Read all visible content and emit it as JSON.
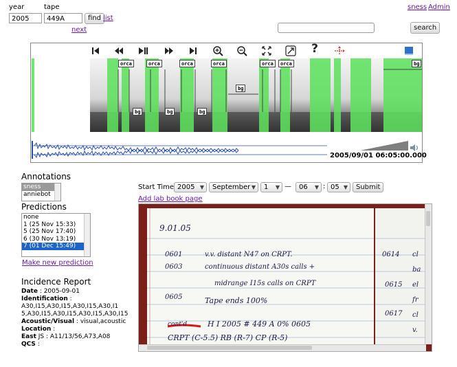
{
  "top": {
    "year_label": "year",
    "tape_label": "tape",
    "year_value": "2005",
    "tape_value": "449A",
    "find_label": "find",
    "list_label": "list",
    "next_label": "next",
    "search_placeholder": "",
    "search_label": "search",
    "user_link": "sness",
    "admin_link": "Admin"
  },
  "toolbar": {
    "icons": [
      "skip-start-icon",
      "rewind-icon",
      "play-pause-icon",
      "fast-forward-icon",
      "skip-end-icon",
      "zoom-in-icon",
      "zoom-out-icon",
      "fit-expand-icon",
      "resize-icon",
      "help-icon",
      "crosshair-icon",
      "book-icon"
    ],
    "help_glyph": "?"
  },
  "spectrogram": {
    "tags": [
      {
        "text": "orca"
      },
      {
        "text": "orca"
      },
      {
        "text": "orca"
      },
      {
        "text": "orca"
      },
      {
        "text": "orca"
      },
      {
        "text": "orca"
      },
      {
        "text": "bg"
      },
      {
        "text": "bg"
      },
      {
        "text": "bg"
      },
      {
        "text": "bg"
      },
      {
        "text": "bg"
      }
    ]
  },
  "waveform": {
    "timestamp": "2005/09/01 06:05:00.000"
  },
  "annotations": {
    "title": "Annotations",
    "items": [
      "sness",
      "anniebot"
    ]
  },
  "predictions": {
    "title": "Predictions",
    "items": [
      "none",
      "1 (25 Nov 15:33)",
      "5 (25 Nov 17:40)",
      "6 (30 Nov 13:19)",
      "7 (01 Dec 15:49)"
    ],
    "selected_index": 4,
    "make_new_label": "Make new prediction"
  },
  "start_time": {
    "label": "Start Time",
    "year": "2005",
    "month": "September",
    "day": "1",
    "dash": "—",
    "hour": "06",
    "colon": ":",
    "minute": "05",
    "submit_label": "Submit",
    "lab_book_link": "Add lab book page"
  },
  "incidence": {
    "title": "Incidence Report",
    "date_key": "Date",
    "date_value": " : 2005-09-01",
    "ident_key": "Identification",
    "ident_value": " :",
    "ident_line1": "A30,I15,A30,I15,A30,I15,A30,I1",
    "ident_line2": "5,A30,I15,A30,I15,A30,I15,A30,I15",
    "av_key": "Acoustic/Visual",
    "av_value": " : visual,acoustic",
    "location_key": "Location",
    "location_value": " :",
    "east_key": "East",
    "east_value": " JS : A11/13/56,A73,A08",
    "qcs_key": "QCS",
    "qcs_value": " :"
  },
  "notebook": {
    "lines": [
      "9.01.05",
      "0601",
      "v.v. distant N47 on CRPT.",
      "0603",
      "continuous distant A30s calls +",
      "midrange I15s calls on CRPT",
      "0605",
      "Tape ends 100%",
      "cont'd",
      "H I 2005 # 449 A 0%  0605",
      "CRPT (C-5.5) RB (R-7) CP (R-5)",
      "0614",
      "0615",
      "0617",
      "cl",
      "ba",
      "el",
      "fr",
      "cl",
      "v."
    ]
  },
  "colors": {
    "link": "#6a1aa8",
    "annotation_green": "#5fe05f",
    "selected_blue": "#1e64c8",
    "waveform_blue": "#2a4fb0"
  }
}
